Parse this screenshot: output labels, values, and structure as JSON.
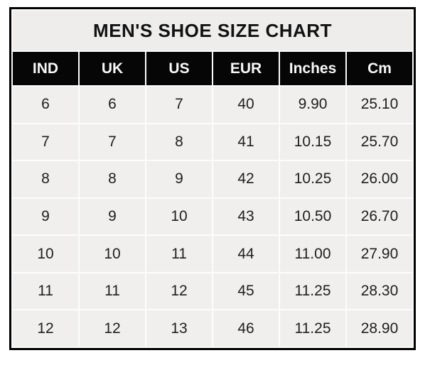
{
  "table": {
    "title": "MEN'S SHOE SIZE CHART",
    "columns": [
      "IND",
      "UK",
      "US",
      "EUR",
      "Inches",
      "Cm"
    ],
    "rows": [
      [
        "6",
        "6",
        "7",
        "40",
        "9.90",
        "25.10"
      ],
      [
        "7",
        "7",
        "8",
        "41",
        "10.15",
        "25.70"
      ],
      [
        "8",
        "8",
        "9",
        "42",
        "10.25",
        "26.00"
      ],
      [
        "9",
        "9",
        "10",
        "43",
        "10.50",
        "26.70"
      ],
      [
        "10",
        "10",
        "11",
        "44",
        "11.00",
        "27.90"
      ],
      [
        "11",
        "11",
        "12",
        "45",
        "11.25",
        "28.30"
      ],
      [
        "12",
        "12",
        "13",
        "46",
        "11.25",
        "28.90"
      ]
    ]
  },
  "colors": {
    "outer_border": "#000000",
    "title_background": "#eeedeb",
    "header_background": "#060606",
    "header_text": "#f7f7f7",
    "cell_background": "#f0efed",
    "cell_text": "#202020",
    "gap": "#fcfcfc"
  },
  "chart_data": {
    "type": "table",
    "title": "MEN'S SHOE SIZE CHART",
    "columns": [
      "IND",
      "UK",
      "US",
      "EUR",
      "Inches",
      "Cm"
    ],
    "rows": [
      [
        6,
        6,
        7,
        40,
        9.9,
        25.1
      ],
      [
        7,
        7,
        8,
        41,
        10.15,
        25.7
      ],
      [
        8,
        8,
        9,
        42,
        10.25,
        26.0
      ],
      [
        9,
        9,
        10,
        43,
        10.5,
        26.7
      ],
      [
        10,
        10,
        11,
        44,
        11.0,
        27.9
      ],
      [
        11,
        11,
        12,
        45,
        11.25,
        28.3
      ],
      [
        12,
        12,
        13,
        46,
        11.25,
        28.9
      ]
    ],
    "notes": "Men's shoe size conversion across IND, UK, US, EUR sizing plus foot length in inches and centimeters. Grid shown as light cells with white gaps inside a black frame."
  }
}
